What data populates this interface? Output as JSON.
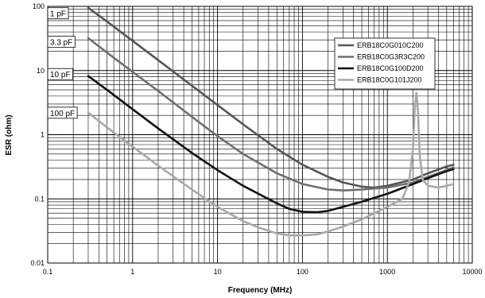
{
  "chart_data": {
    "type": "line",
    "title": "",
    "xlabel": "Frequency (MHz)",
    "ylabel": "ESR (ohm)",
    "xscale": "log",
    "yscale": "log",
    "xlim": [
      0.1,
      10000
    ],
    "ylim": [
      0.01,
      100
    ],
    "grid": true,
    "legend_position": "top-right",
    "x_ticks": [
      {
        "value": 0.1,
        "label": "0.1"
      },
      {
        "value": 1,
        "label": "1"
      },
      {
        "value": 10,
        "label": "10"
      },
      {
        "value": 100,
        "label": "100"
      },
      {
        "value": 1000,
        "label": "1000"
      },
      {
        "value": 10000,
        "label": "10000"
      }
    ],
    "y_ticks": [
      {
        "value": 0.01,
        "label": "0.01"
      },
      {
        "value": 0.1,
        "label": "0.1"
      },
      {
        "value": 1,
        "label": "1"
      },
      {
        "value": 10,
        "label": "10"
      },
      {
        "value": 100,
        "label": "100"
      }
    ],
    "annotations": [
      {
        "text": "1 pF",
        "x": 0.1,
        "y": 78
      },
      {
        "text": "3.3 pF",
        "x": 0.1,
        "y": 28
      },
      {
        "text": "10 pF",
        "x": 0.1,
        "y": 8.8
      },
      {
        "text": "100 pF",
        "x": 0.1,
        "y": 2.2
      }
    ],
    "series": [
      {
        "name": "ERB18C0G010C200",
        "color": "#555555",
        "x": [
          0.3,
          0.5,
          1,
          2,
          5,
          10,
          20,
          50,
          100,
          200,
          300,
          500,
          700,
          1000,
          2000,
          3000,
          5000,
          6000
        ],
        "y": [
          95,
          58,
          29,
          14.5,
          5.8,
          2.9,
          1.45,
          0.6,
          0.34,
          0.22,
          0.18,
          0.155,
          0.15,
          0.16,
          0.2,
          0.25,
          0.32,
          0.34
        ]
      },
      {
        "name": "ERB18C0G3R3C200",
        "color": "#6e6e6e",
        "x": [
          0.3,
          0.5,
          1,
          2,
          5,
          10,
          20,
          50,
          100,
          200,
          300,
          500,
          1000,
          2000,
          3000,
          5000,
          6000
        ],
        "y": [
          32,
          19,
          9.5,
          4.8,
          1.9,
          0.95,
          0.5,
          0.25,
          0.17,
          0.14,
          0.135,
          0.14,
          0.15,
          0.18,
          0.22,
          0.28,
          0.31
        ]
      },
      {
        "name": "ERB18C0G100D200",
        "color": "#111111",
        "x": [
          0.3,
          0.5,
          1,
          2,
          5,
          10,
          20,
          50,
          70,
          100,
          150,
          200,
          300,
          500,
          1000,
          2000,
          3000,
          5000,
          6000
        ],
        "y": [
          8.2,
          5,
          2.5,
          1.25,
          0.52,
          0.28,
          0.16,
          0.085,
          0.07,
          0.063,
          0.062,
          0.065,
          0.075,
          0.09,
          0.12,
          0.17,
          0.21,
          0.27,
          0.29
        ]
      },
      {
        "name": "ERB18C0G101J200",
        "color": "#a8a8a8",
        "x": [
          0.3,
          0.5,
          1,
          2,
          5,
          10,
          20,
          30,
          50,
          70,
          100,
          150,
          200,
          300,
          500,
          1000,
          1500,
          1800,
          2000,
          2100,
          2200,
          2300,
          2400,
          2600,
          3000,
          4000,
          5000,
          6000
        ],
        "y": [
          2.2,
          1.3,
          0.65,
          0.33,
          0.14,
          0.075,
          0.045,
          0.036,
          0.029,
          0.027,
          0.027,
          0.028,
          0.031,
          0.037,
          0.048,
          0.075,
          0.1,
          0.18,
          0.6,
          2.5,
          4.5,
          2.2,
          0.5,
          0.2,
          0.16,
          0.15,
          0.16,
          0.17
        ]
      }
    ]
  }
}
